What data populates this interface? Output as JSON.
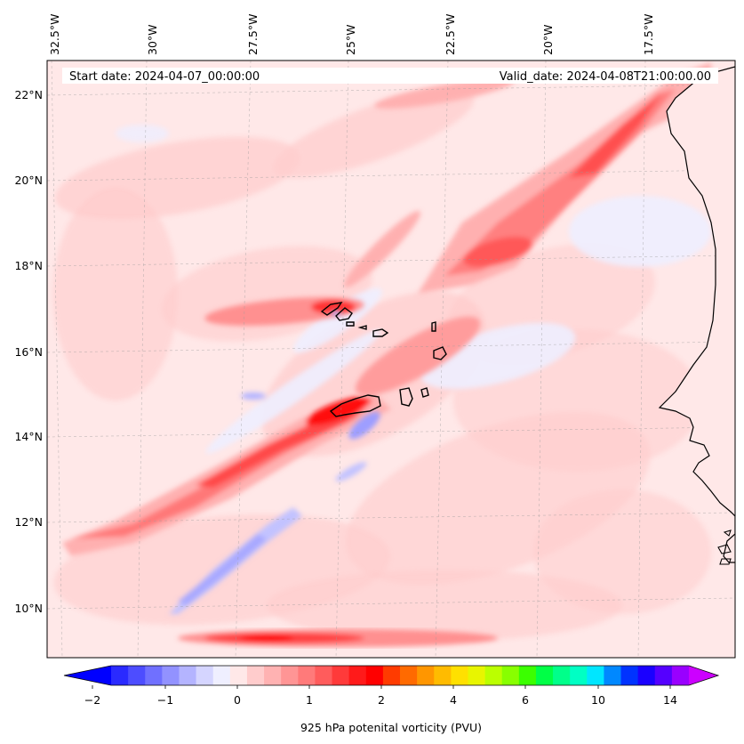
{
  "map": {
    "start_date": "Start date: 2024-04-07_00:00:00",
    "valid_date": "Valid_date: 2024-04-08T21:00:00.00",
    "lon_labels": [
      "32.5°W",
      "30°W",
      "27.5°W",
      "25°W",
      "22.5°W",
      "20°W",
      "17.5°W"
    ],
    "lat_labels": [
      "22°N",
      "20°N",
      "18°N",
      "16°N",
      "14°N",
      "12°N",
      "10°N"
    ]
  },
  "colorbar": {
    "label": "925 hPa potenital vorticity (PVU)",
    "tick_labels": [
      "−2",
      "−1",
      "0",
      "1",
      "2",
      "4",
      "6",
      "10",
      "14"
    ],
    "colors": [
      "#0000ff",
      "#2a2aff",
      "#4d4dff",
      "#7070ff",
      "#9292ff",
      "#b4b4ff",
      "#d5d5ff",
      "#efefff",
      "#ffe8e8",
      "#ffcccc",
      "#ffb2b2",
      "#ff9595",
      "#ff7a7a",
      "#ff5c5c",
      "#ff3a3a",
      "#ff1a1a",
      "#ff0000",
      "#ff3b00",
      "#ff6a00",
      "#ff9600",
      "#ffbb00",
      "#ffe000",
      "#e8f500",
      "#bbff00",
      "#88ff00",
      "#3bff00",
      "#00ff46",
      "#00ff8a",
      "#00ffc4",
      "#00e6ff",
      "#0088ff",
      "#0033ff",
      "#1a00ff",
      "#5500ff",
      "#9900ff",
      "#cc00ff"
    ]
  },
  "palette": {
    "background": "#ffe8e8",
    "light_pink": "#ffcccc",
    "mid_pink": "#ff9c9c",
    "red": "#ff5858",
    "strong_red": "#ff2020",
    "light_blue": "#eeeeff",
    "blue": "#c2c2ff",
    "coast": "#000000"
  }
}
